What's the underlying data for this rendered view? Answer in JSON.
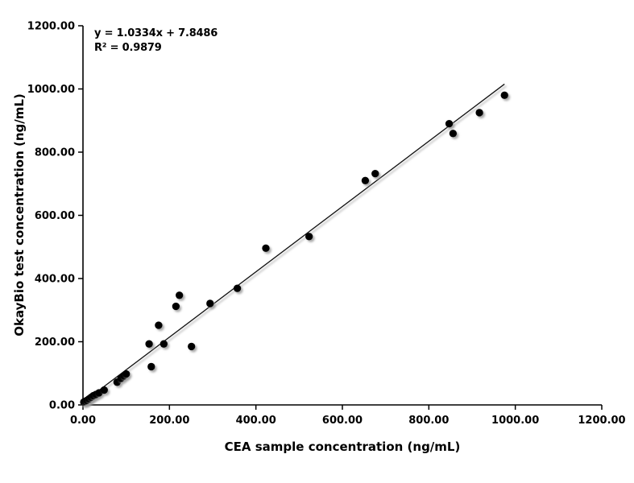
{
  "chart_data": {
    "type": "scatter",
    "xlabel": "CEA sample concentration (ng/mL)",
    "ylabel": "OkayBio test concentration (ng/mL)",
    "xlim": [
      0,
      1200
    ],
    "ylim": [
      0,
      1200
    ],
    "grid": false,
    "x_tick_values": [
      0,
      200,
      400,
      600,
      800,
      1000,
      1200
    ],
    "x_tick_labels": [
      "0.00",
      "200.00",
      "400.00",
      "600.00",
      "800.00",
      "1000.00",
      "1200.00"
    ],
    "y_tick_values": [
      0,
      200,
      400,
      600,
      800,
      1000,
      1200
    ],
    "y_tick_labels": [
      "0.00",
      "200.00",
      "400.00",
      "600.00",
      "800.00",
      "1000.00",
      "1200.00"
    ],
    "points": [
      [
        2,
        9
      ],
      [
        5,
        11
      ],
      [
        9,
        14
      ],
      [
        14,
        19
      ],
      [
        19,
        24
      ],
      [
        24,
        29
      ],
      [
        30,
        33
      ],
      [
        37,
        38
      ],
      [
        49,
        47
      ],
      [
        79,
        72
      ],
      [
        88,
        84
      ],
      [
        95,
        92
      ],
      [
        100,
        98
      ],
      [
        153,
        193
      ],
      [
        158,
        121
      ],
      [
        175,
        252
      ],
      [
        187,
        193
      ],
      [
        215,
        312
      ],
      [
        223,
        347
      ],
      [
        251,
        185
      ],
      [
        294,
        321
      ],
      [
        357,
        369
      ],
      [
        423,
        496
      ],
      [
        523,
        533
      ],
      [
        653,
        710
      ],
      [
        676,
        732
      ],
      [
        847,
        890
      ],
      [
        856,
        859
      ],
      [
        917,
        925
      ],
      [
        975,
        980
      ]
    ],
    "trendline": {
      "slope": 1.0334,
      "intercept": 7.8486,
      "x_start": 0,
      "x_end": 975
    },
    "annotations": {
      "equation": "y = 1.0334x + 7.8486",
      "r_squared": "R² = 0.9879"
    },
    "colors": {
      "marker": "#050505",
      "trendline": "#111111",
      "axis": "#000000",
      "shadow": "#9a9a9a",
      "background": "#ffffff"
    }
  }
}
